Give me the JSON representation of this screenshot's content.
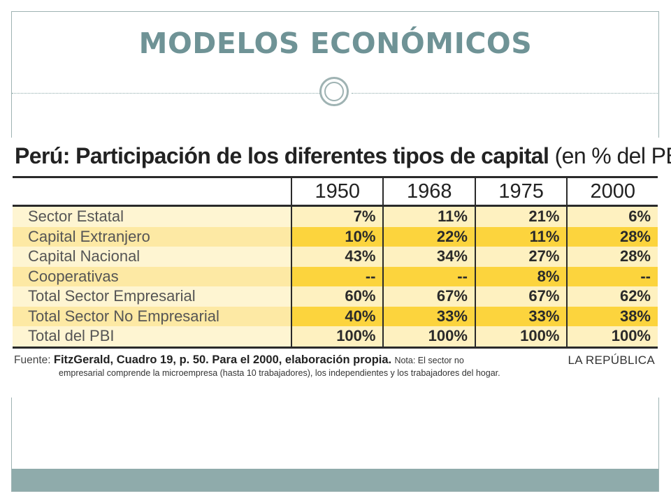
{
  "slide": {
    "title": "MODELOS ECONÓMICOS"
  },
  "figure": {
    "title_bold": "Perú: Participación de los diferentes tipos de capital",
    "title_unit": "(en % del PBI)",
    "columns": [
      "1950",
      "1968",
      "1975",
      "2000"
    ],
    "rows": [
      {
        "label": "Sector Estatal",
        "values": [
          "7%",
          "11%",
          "21%",
          "6%"
        ]
      },
      {
        "label": "Capital Extranjero",
        "values": [
          "10%",
          "22%",
          "11%",
          "28%"
        ]
      },
      {
        "label": "Capital Nacional",
        "values": [
          "43%",
          "34%",
          "27%",
          "28%"
        ]
      },
      {
        "label": "Cooperativas",
        "values": [
          "--",
          "--",
          "8%",
          "--"
        ]
      },
      {
        "label": "Total Sector Empresarial",
        "values": [
          "60%",
          "67%",
          "67%",
          "62%"
        ]
      },
      {
        "label": "Total Sector No Empresarial",
        "values": [
          "40%",
          "33%",
          "33%",
          "38%"
        ]
      },
      {
        "label": "Total del PBI",
        "values": [
          "100%",
          "100%",
          "100%",
          "100%"
        ]
      }
    ],
    "source_label": "Fuente:",
    "source_main": "FitzGerald, Cuadro 19, p. 50. Para el 2000, elaboración propia.",
    "source_note_1": "Nota: El sector no",
    "source_note_2": "empresarial comprende la microempresa (hasta 10 trabajadores), los independientes y los trabajadores del hogar.",
    "brand": "LA REPÚBLICA"
  },
  "colors": {
    "title": "#6f9396",
    "frame": "#9eb3b3",
    "footer_bar": "#8fabab",
    "row_yellow": "#fcd43d",
    "row_cream": "#fef1c0"
  }
}
